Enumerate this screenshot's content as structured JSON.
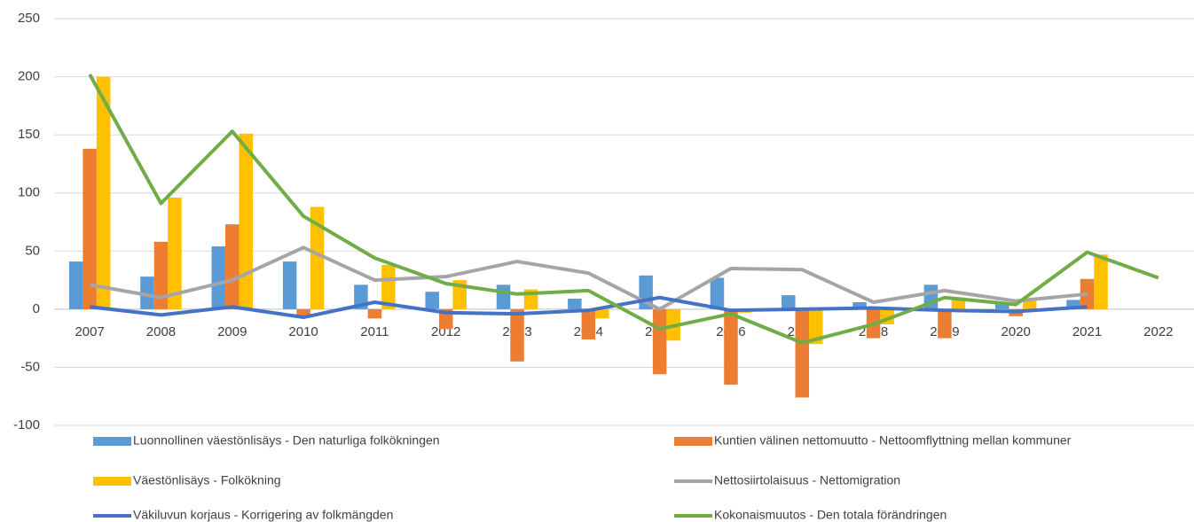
{
  "chart_data": {
    "type": "bar",
    "categories": [
      "2007",
      "2008",
      "2009",
      "2010",
      "2011",
      "2012",
      "2013",
      "2014",
      "2015",
      "2016",
      "2017",
      "2018",
      "2019",
      "2020",
      "2021",
      "2022"
    ],
    "series": [
      {
        "name": "Luonnollinen väestönlisäys -  Den naturliga folkökningen",
        "type": "bar",
        "color": "#5b9bd5",
        "values": [
          41,
          28,
          54,
          41,
          21,
          15,
          21,
          9,
          29,
          27,
          12,
          6,
          21,
          5,
          8,
          null
        ]
      },
      {
        "name": "Kuntien välinen nettomuutto - Nettoomflyttning mellan kommuner",
        "type": "bar",
        "color": "#ed7d31",
        "values": [
          138,
          58,
          73,
          -6,
          -8,
          -17,
          -45,
          -26,
          -56,
          -65,
          -76,
          -25,
          -25,
          -6,
          26,
          null
        ]
      },
      {
        "name": "Väestönlisäys - Folkökning",
        "type": "bar",
        "color": "#ffc000",
        "values": [
          200,
          96,
          151,
          88,
          38,
          25,
          17,
          -8,
          -27,
          -3,
          -30,
          -13,
          10,
          7,
          47,
          null
        ]
      },
      {
        "name": "Nettosiirtolaisuus - Nettomigration",
        "type": "line",
        "color": "#a5a5a5",
        "values": [
          21,
          10,
          25,
          53,
          25,
          28,
          41,
          31,
          0,
          35,
          34,
          6,
          16,
          7,
          13,
          null
        ]
      },
      {
        "name": "Väkiluvun korjaus - Korrigering av folkmängden",
        "type": "line",
        "color": "#4472c4",
        "values": [
          2,
          -5,
          2,
          -7,
          6,
          -3,
          -4,
          -1,
          10,
          -1,
          0,
          1,
          -1,
          -2,
          2,
          null
        ]
      },
      {
        "name": "Kokonaismuutos - Den totala förändringen",
        "type": "line",
        "color": "#70ad47",
        "values": [
          202,
          91,
          153,
          80,
          44,
          22,
          13,
          16,
          -17,
          -4,
          -29,
          -13,
          10,
          4,
          49,
          27
        ]
      }
    ],
    "ylim": [
      -100,
      250
    ],
    "yticks": [
      -100,
      -50,
      0,
      50,
      100,
      150,
      200,
      250
    ],
    "grid": true
  }
}
